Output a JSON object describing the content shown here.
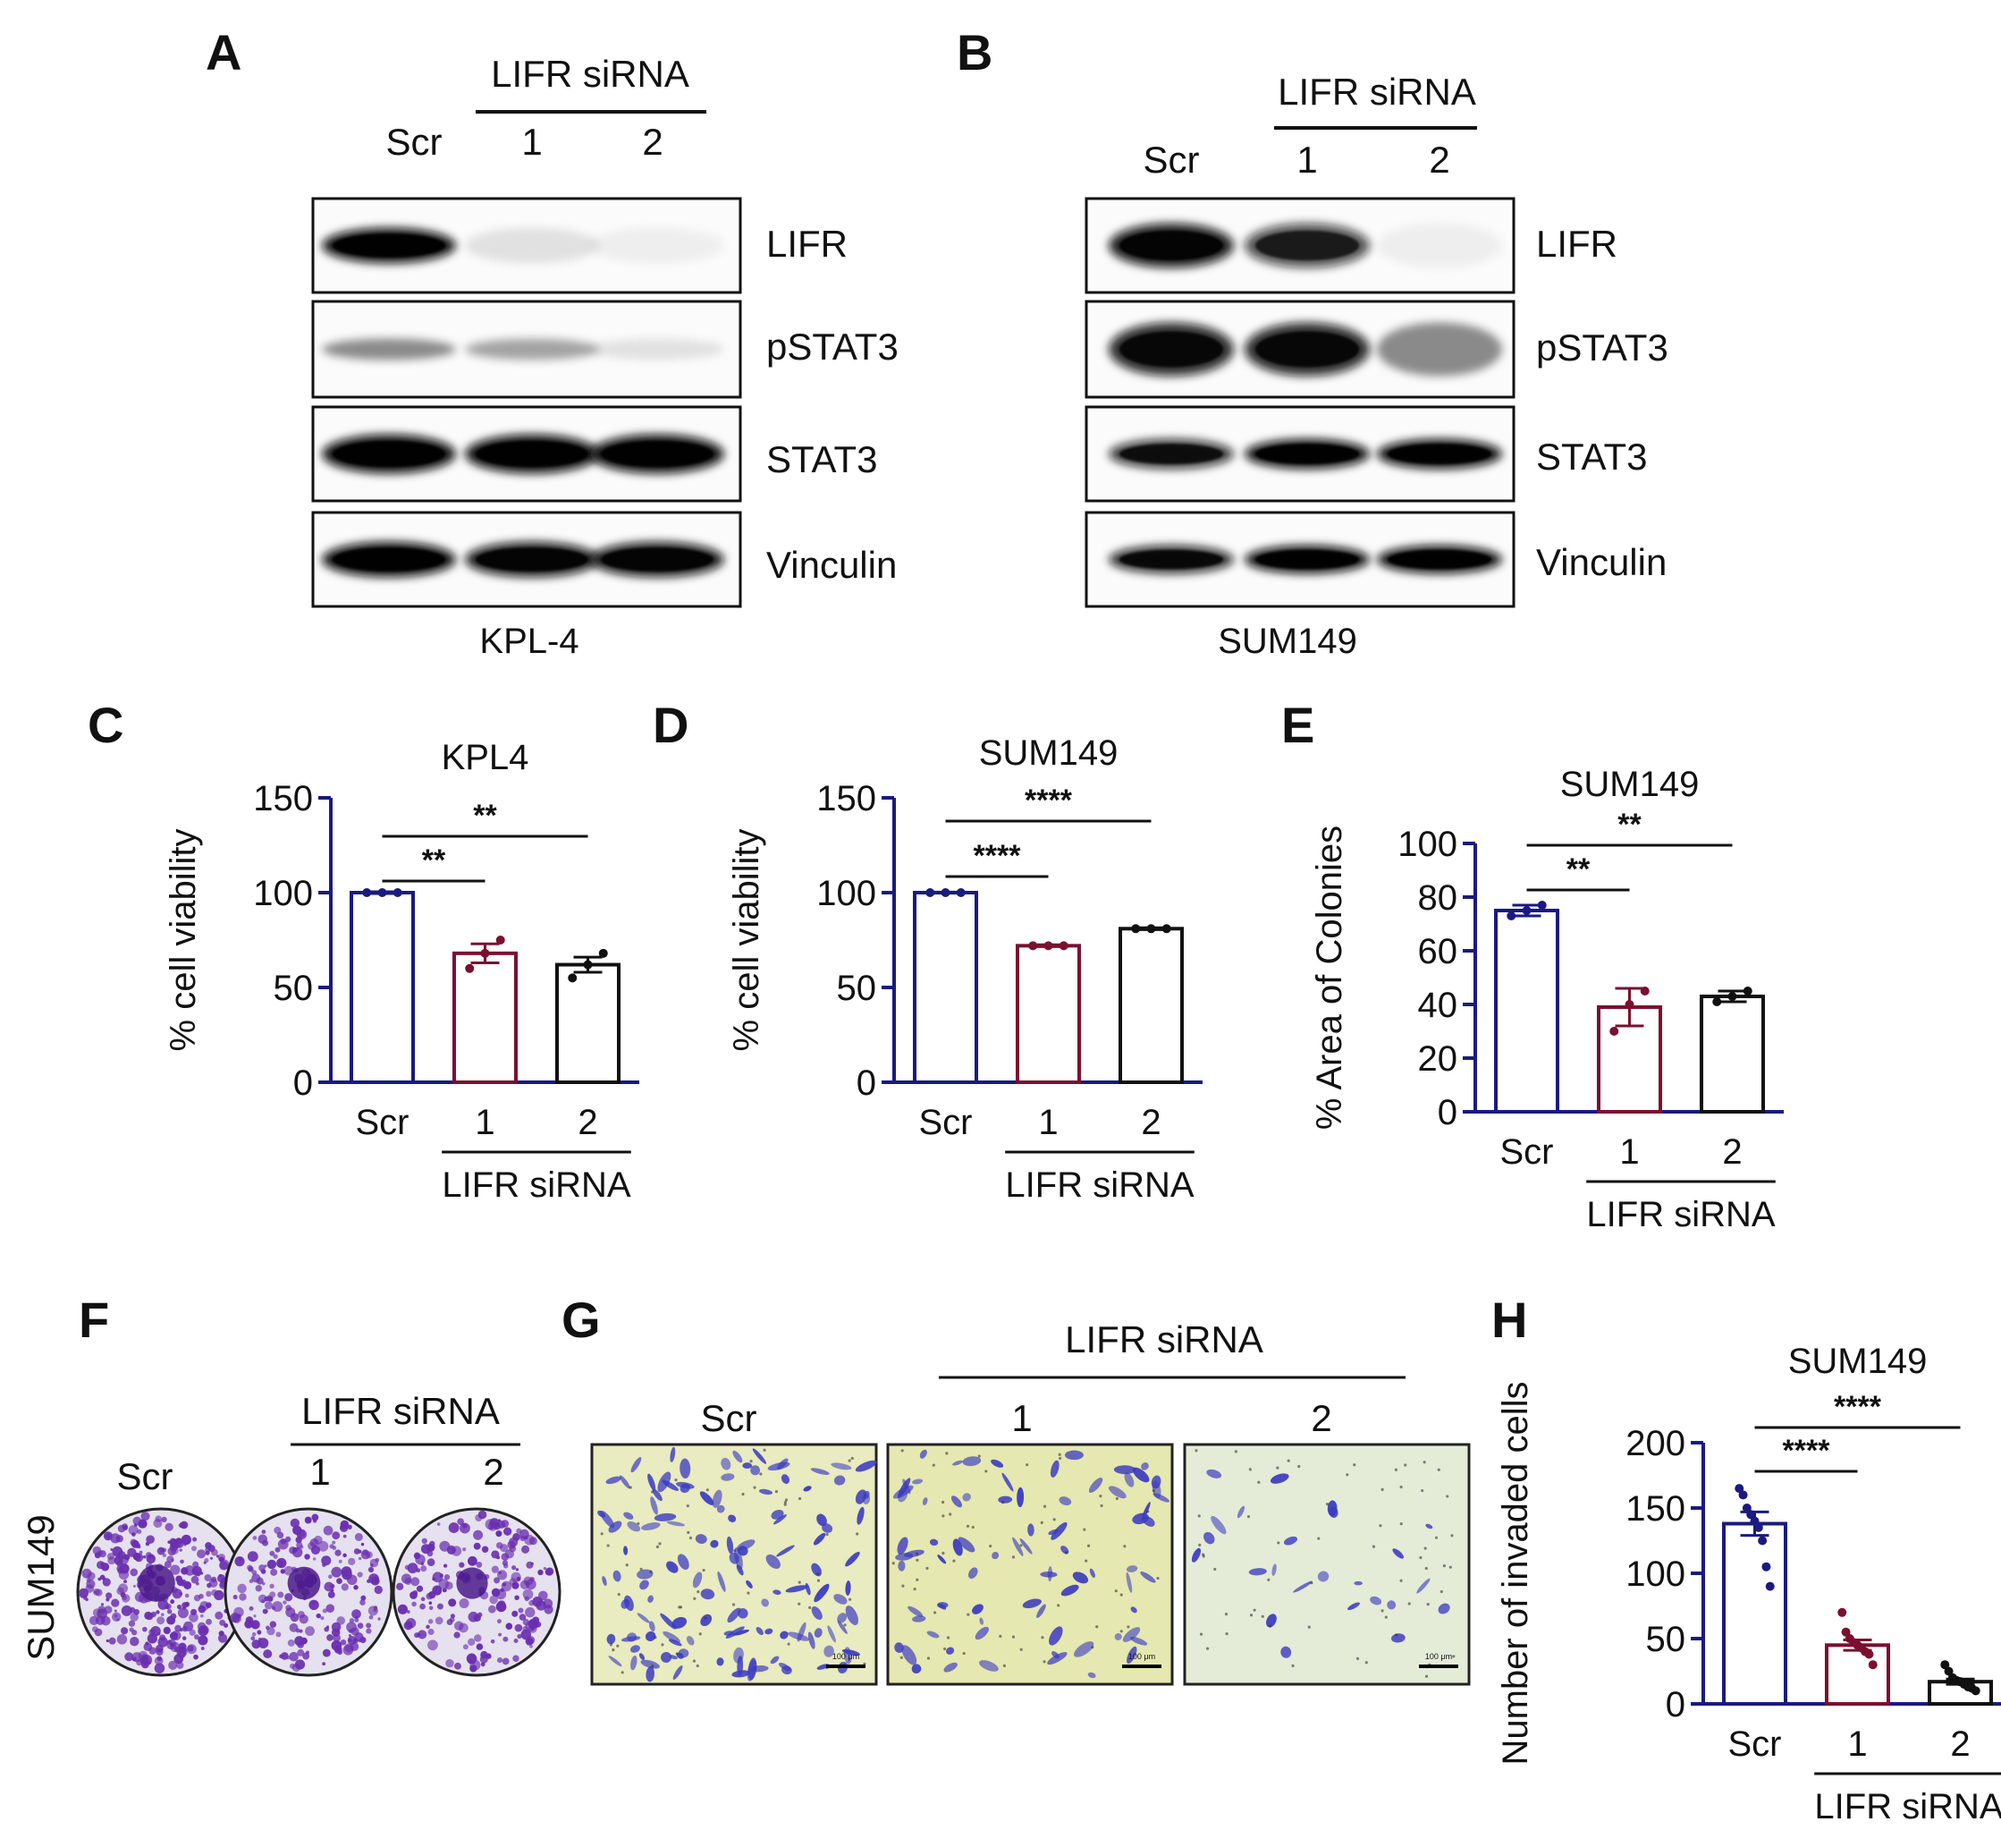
{
  "colors": {
    "scr": "#1a1a80",
    "sirna1": "#7a1030",
    "sirna2": "#111111",
    "axis": "#1a1a80",
    "significance": "#111111",
    "crystal_violet": "#6a2fb0",
    "invasion_stain": "#3b3bc0"
  },
  "panels": {
    "a": {
      "letter": "A",
      "group_label": "LIFR siRNA",
      "lanes": [
        "Scr",
        "1",
        "2"
      ],
      "blots": [
        {
          "label": "LIFR",
          "intensities": [
            0.95,
            0.1,
            0.05
          ]
        },
        {
          "label": "pSTAT3",
          "intensities": [
            0.45,
            0.35,
            0.1
          ]
        },
        {
          "label": "STAT3",
          "intensities": [
            0.95,
            0.95,
            0.95
          ]
        },
        {
          "label": "Vinculin",
          "intensities": [
            0.95,
            0.9,
            0.9
          ]
        }
      ],
      "cell_line": "KPL-4"
    },
    "b": {
      "letter": "B",
      "group_label": "LIFR siRNA",
      "lanes": [
        "Scr",
        "1",
        "2"
      ],
      "blots": [
        {
          "label": "LIFR",
          "intensities": [
            0.9,
            0.7,
            0.05
          ]
        },
        {
          "label": "pSTAT3",
          "intensities": [
            0.85,
            0.85,
            0.45
          ]
        },
        {
          "label": "STAT3",
          "intensities": [
            0.8,
            0.95,
            0.95
          ]
        },
        {
          "label": "Vinculin",
          "intensities": [
            0.85,
            0.95,
            0.95
          ]
        }
      ],
      "cell_line": "SUM149"
    },
    "c": {
      "letter": "C"
    },
    "d": {
      "letter": "D"
    },
    "e": {
      "letter": "E"
    },
    "f": {
      "letter": "F",
      "group_label": "LIFR siRNA",
      "row_label": "SUM149",
      "conditions": [
        "Scr",
        "1",
        "2"
      ],
      "colony_density": [
        0.85,
        0.55,
        0.45
      ]
    },
    "g": {
      "letter": "G",
      "group_label": "LIFR siRNA",
      "conditions": [
        "Scr",
        "1",
        "2"
      ],
      "scale_bar": "100 μm",
      "invasion_density": [
        0.9,
        0.5,
        0.1
      ]
    },
    "h": {
      "letter": "H"
    }
  },
  "chart_data": [
    {
      "panel": "C",
      "type": "bar",
      "title": "KPL4",
      "ylabel": "% cell viability",
      "xlabel": "",
      "group_label": "LIFR siRNA",
      "categories": [
        "Scr",
        "1",
        "2"
      ],
      "values": [
        100,
        68,
        62
      ],
      "sem": [
        0.5,
        5,
        4
      ],
      "points": [
        [
          100,
          100,
          100
        ],
        [
          60,
          68,
          75
        ],
        [
          55,
          62,
          68
        ]
      ],
      "ylim": [
        0,
        150
      ],
      "yticks": [
        0,
        50,
        100,
        150
      ],
      "significance": [
        {
          "pair": [
            "Scr",
            "1"
          ],
          "label": "**"
        },
        {
          "pair": [
            "Scr",
            "2"
          ],
          "label": "**"
        }
      ]
    },
    {
      "panel": "D",
      "type": "bar",
      "title": "SUM149",
      "ylabel": "% cell viability",
      "xlabel": "",
      "group_label": "LIFR siRNA",
      "categories": [
        "Scr",
        "1",
        "2"
      ],
      "values": [
        100,
        72,
        81
      ],
      "sem": [
        0.3,
        0.5,
        0.5
      ],
      "points": [
        [
          100,
          100,
          100
        ],
        [
          72,
          72,
          72
        ],
        [
          81,
          81,
          81
        ]
      ],
      "ylim": [
        0,
        150
      ],
      "yticks": [
        0,
        50,
        100,
        150
      ],
      "significance": [
        {
          "pair": [
            "Scr",
            "1"
          ],
          "label": "****"
        },
        {
          "pair": [
            "Scr",
            "2"
          ],
          "label": "****"
        }
      ]
    },
    {
      "panel": "E",
      "type": "bar",
      "title": "SUM149",
      "ylabel": "% Area of Colonies",
      "xlabel": "",
      "group_label": "LIFR siRNA",
      "categories": [
        "Scr",
        "1",
        "2"
      ],
      "values": [
        75,
        39,
        43
      ],
      "sem": [
        2,
        7,
        2
      ],
      "points": [
        [
          73,
          75,
          77
        ],
        [
          30,
          40,
          45
        ],
        [
          41,
          43,
          45
        ]
      ],
      "ylim": [
        0,
        100
      ],
      "yticks": [
        0,
        20,
        40,
        60,
        80,
        100
      ],
      "significance": [
        {
          "pair": [
            "Scr",
            "1"
          ],
          "label": "**"
        },
        {
          "pair": [
            "Scr",
            "2"
          ],
          "label": "**"
        }
      ]
    },
    {
      "panel": "H",
      "type": "bar",
      "title": "SUM149",
      "ylabel": "Number of invaded cells",
      "xlabel": "",
      "group_label": "LIFR siRNA",
      "categories": [
        "Scr",
        "1",
        "2"
      ],
      "values": [
        138,
        45,
        17
      ],
      "sem": [
        9,
        4,
        2
      ],
      "points": [
        [
          165,
          160,
          150,
          145,
          140,
          135,
          125,
          105,
          90
        ],
        [
          70,
          55,
          50,
          47,
          45,
          43,
          40,
          38,
          30
        ],
        [
          30,
          25,
          20,
          18,
          17,
          15,
          13,
          12,
          10
        ]
      ],
      "ylim": [
        0,
        200
      ],
      "yticks": [
        0,
        50,
        100,
        150,
        200
      ],
      "significance": [
        {
          "pair": [
            "Scr",
            "1"
          ],
          "label": "****"
        },
        {
          "pair": [
            "Scr",
            "2"
          ],
          "label": "****"
        }
      ]
    }
  ]
}
